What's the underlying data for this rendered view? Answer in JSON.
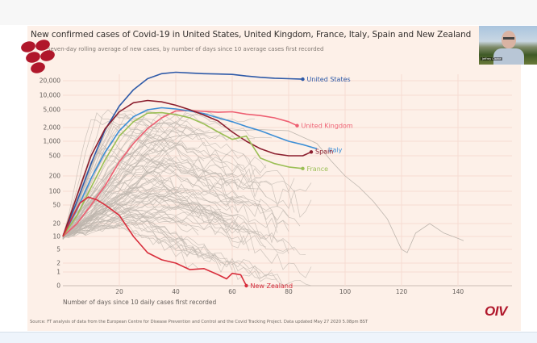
{
  "webcam": {
    "participant_name": "Jeffrey Clarke"
  },
  "slide": {
    "logo_text": "OIV",
    "source": "Source: FT analysis of data from the European Centre for Disease Prevention and Control and the Covid Tracking Project. Data updated May 27 2020 5.08pm BST"
  },
  "colors": {
    "panel_background": "#fdf0e8",
    "background_lines": "#bdb5ad",
    "united_states": "#2e5aa8",
    "united_kingdom": "#ee5f72",
    "france": "#9bbf55",
    "italy": "#3d8fd6",
    "spain": "#8b1e2e",
    "new_zealand": "#d82e3c",
    "oiv_brand": "#b0172b"
  },
  "chart_data": {
    "type": "line",
    "title": "New confirmed cases of Covid-19 in United States, United Kingdom, France, Italy, Spain and New Zealand",
    "subtitle": "Seven-day rolling average of new cases, by number of days since 10 average cases first recorded",
    "xlabel": "Number of days since 10 daily cases first recorded",
    "ylabel": "",
    "y_scale": "log (with 0 baseline)",
    "xlim": [
      0,
      160
    ],
    "ylim": [
      0,
      30000
    ],
    "grid": true,
    "x_ticks": [
      20,
      40,
      60,
      80,
      100,
      120,
      140
    ],
    "x_tick_labels": [
      "20",
      "40",
      "60",
      "80",
      "100",
      "120",
      "140"
    ],
    "y_ticks": [
      0,
      1,
      2,
      5,
      10,
      20,
      50,
      100,
      200,
      500,
      1000,
      2000,
      5000,
      10000,
      20000
    ],
    "y_tick_labels": [
      "0",
      "1",
      "2",
      "5",
      "10",
      "20",
      "50",
      "100",
      "200",
      "500",
      "1,000",
      "2,000",
      "5,000",
      "10,000",
      "20,000"
    ],
    "legend": "direct labels at line ends",
    "series": [
      {
        "name": "United States",
        "key": "united_states",
        "x": [
          0,
          5,
          10,
          15,
          20,
          25,
          30,
          35,
          40,
          45,
          50,
          55,
          60,
          65,
          70,
          75,
          80,
          85
        ],
        "values": [
          10,
          60,
          350,
          1800,
          6000,
          13000,
          22000,
          28000,
          30000,
          29000,
          28000,
          27500,
          27000,
          25000,
          23500,
          22500,
          22000,
          21500
        ]
      },
      {
        "name": "United Kingdom",
        "key": "united_kingdom",
        "x": [
          0,
          5,
          10,
          15,
          20,
          25,
          30,
          35,
          40,
          45,
          50,
          55,
          60,
          65,
          70,
          75,
          80,
          83
        ],
        "values": [
          10,
          20,
          50,
          130,
          380,
          900,
          1900,
          3300,
          4700,
          4800,
          4600,
          4400,
          4500,
          4000,
          3700,
          3300,
          2700,
          2200
        ]
      },
      {
        "name": "Italy",
        "key": "italy",
        "x": [
          0,
          5,
          10,
          15,
          20,
          25,
          30,
          35,
          40,
          45,
          50,
          55,
          60,
          65,
          70,
          75,
          80,
          85,
          90
        ],
        "values": [
          10,
          40,
          180,
          600,
          1700,
          3500,
          5000,
          5500,
          5200,
          4700,
          4100,
          3300,
          2700,
          2100,
          1700,
          1300,
          1000,
          850,
          700
        ]
      },
      {
        "name": "Spain",
        "key": "spain",
        "x": [
          0,
          5,
          10,
          15,
          20,
          25,
          30,
          35,
          40,
          45,
          50,
          55,
          60,
          65,
          70,
          75,
          80,
          85,
          88
        ],
        "values": [
          10,
          80,
          500,
          1900,
          4500,
          7000,
          7800,
          7300,
          6200,
          5000,
          3800,
          2800,
          1600,
          1000,
          700,
          550,
          500,
          500,
          600
        ]
      },
      {
        "name": "France",
        "key": "france",
        "x": [
          0,
          5,
          10,
          15,
          20,
          25,
          30,
          35,
          40,
          45,
          50,
          55,
          60,
          65,
          70,
          75,
          80,
          85
        ],
        "values": [
          10,
          30,
          120,
          420,
          1300,
          2700,
          4200,
          4300,
          3900,
          3300,
          2400,
          1600,
          1100,
          1300,
          450,
          350,
          300,
          280
        ]
      },
      {
        "name": "New Zealand",
        "key": "new_zealand",
        "x": [
          0,
          3,
          6,
          9,
          12,
          15,
          20,
          25,
          30,
          35,
          40,
          45,
          50,
          55,
          58,
          60,
          63,
          65
        ],
        "values": [
          10,
          25,
          55,
          75,
          65,
          50,
          30,
          10,
          4,
          2.5,
          2,
          1.2,
          1.3,
          0.8,
          0.5,
          0.9,
          0.8,
          0
        ]
      }
    ],
    "background_series_note": "Many grey lines for other countries/regions shown behind highlighted series"
  }
}
